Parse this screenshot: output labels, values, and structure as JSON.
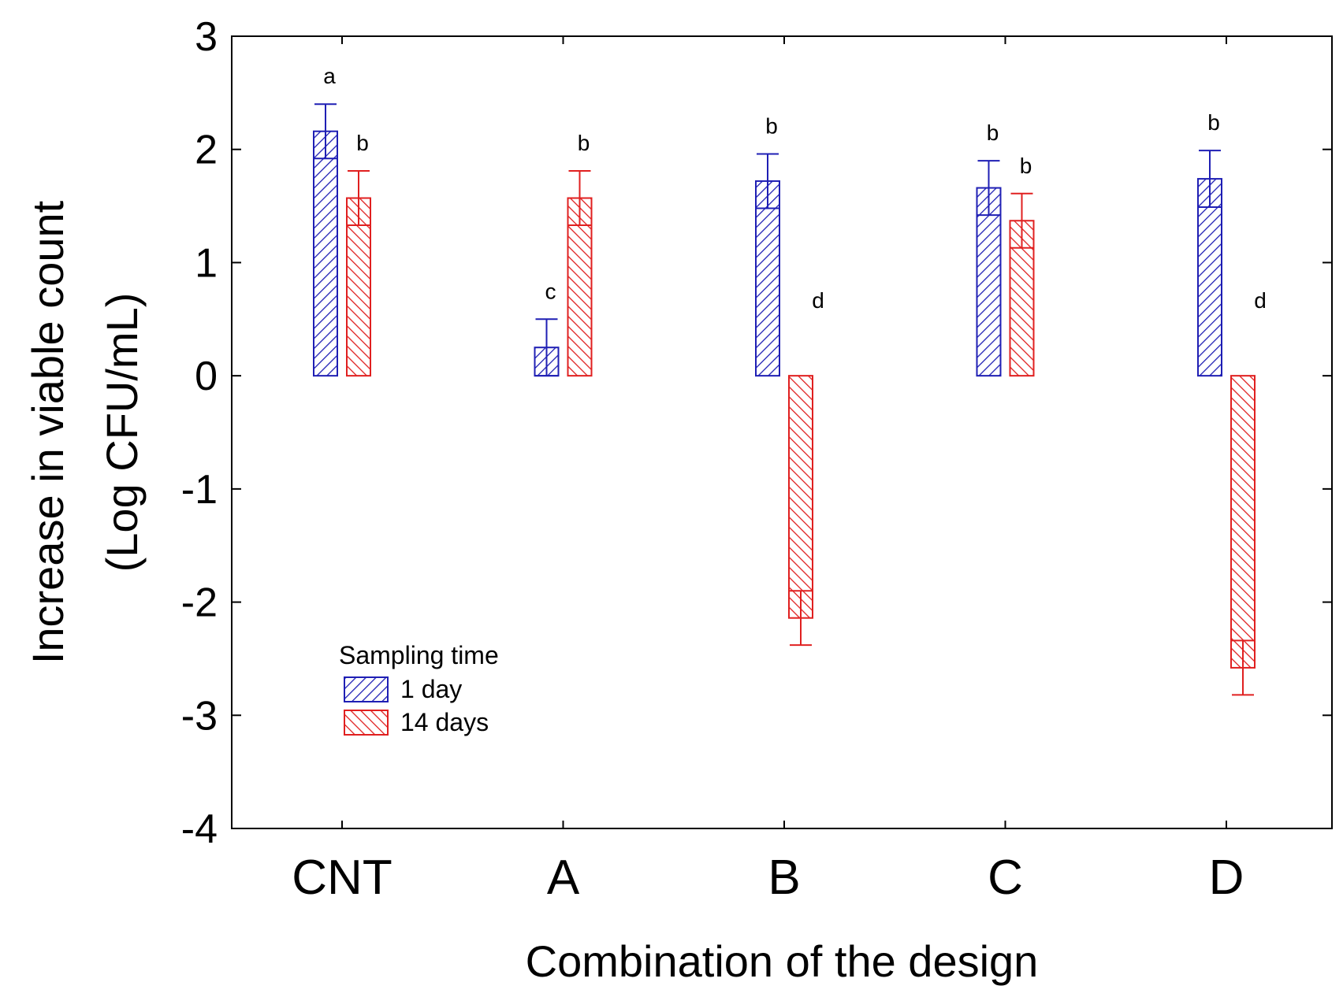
{
  "chart_data": {
    "type": "bar",
    "title": "",
    "xlabel": "Combination of the design",
    "ylabel_line1": "Increase in viable count",
    "ylabel_line2": "(Log CFU/mL)",
    "ylim": [
      -4,
      3
    ],
    "yticks": [
      "-4",
      "-3",
      "-2",
      "-1",
      "0",
      "1",
      "2",
      "3"
    ],
    "categories": [
      "CNT",
      "A",
      "B",
      "C",
      "D"
    ],
    "legend": {
      "title": "Sampling time",
      "placement": "lower-left"
    },
    "series": [
      {
        "name": "1 day",
        "color": "#1f1fb4",
        "hatch": "forward-diagonal",
        "values": [
          2.16,
          0.25,
          1.72,
          1.66,
          1.74
        ],
        "errors": [
          0.24,
          0.25,
          0.24,
          0.24,
          0.25
        ],
        "letters": [
          "a",
          "c",
          "b",
          "b",
          "b"
        ]
      },
      {
        "name": "14 days",
        "color": "#e02020",
        "hatch": "back-diagonal",
        "values": [
          1.57,
          1.57,
          -2.14,
          1.37,
          -2.58
        ],
        "errors": [
          0.24,
          0.24,
          0.24,
          0.24,
          0.24
        ],
        "letters": [
          "b",
          "b",
          "d",
          "b",
          "d"
        ]
      }
    ]
  }
}
